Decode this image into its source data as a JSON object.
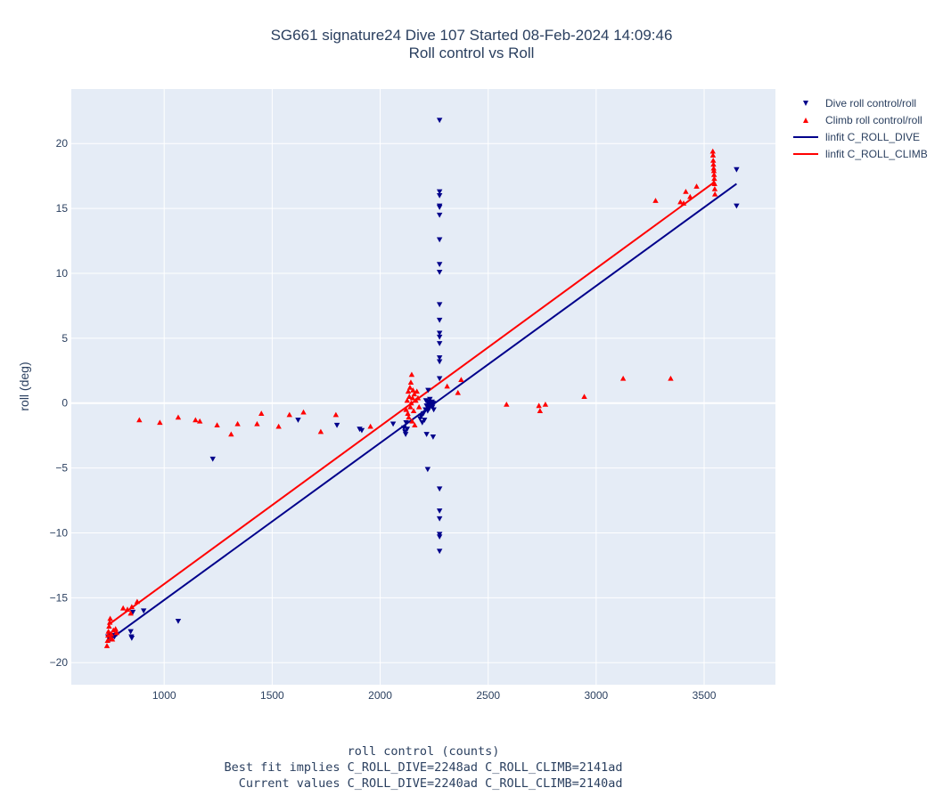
{
  "title": {
    "line1": "SG661 signature24 Dive 107 Started 08-Feb-2024 14:09:46",
    "line2": "Roll control vs Roll"
  },
  "xlabel": {
    "line1": "roll control (counts)",
    "line2": "Best fit implies C_ROLL_DIVE=2248ad C_ROLL_CLIMB=2141ad",
    "line3": "  Current values C_ROLL_DIVE=2240ad C_ROLL_CLIMB=2140ad"
  },
  "legend": [
    {
      "label": "Dive roll control/roll",
      "kind": "marker-down",
      "color": "#00008b"
    },
    {
      "label": "Climb roll control/roll",
      "kind": "marker-up",
      "color": "#ff0000"
    },
    {
      "label": "linfit C_ROLL_DIVE",
      "kind": "line",
      "color": "#00008b"
    },
    {
      "label": "linfit C_ROLL_CLIMB",
      "kind": "line",
      "color": "#ff0000"
    }
  ],
  "chart_data": {
    "type": "scatter",
    "xlabel": "roll control (counts)",
    "ylabel": "roll (deg)",
    "xlim": [
      570,
      3830
    ],
    "ylim": [
      -21.7,
      24.2
    ],
    "xticks": [
      1000,
      1500,
      2000,
      2500,
      3000,
      3500
    ],
    "yticks": [
      -20,
      -15,
      -10,
      -5,
      0,
      5,
      10,
      15,
      20
    ],
    "grid": true,
    "legend_position": "right",
    "colors": {
      "dive": "#00008b",
      "climb": "#ff0000",
      "plot_bg": "#e5ecf6",
      "grid": "#ffffff"
    },
    "series": [
      {
        "name": "Dive roll control/roll",
        "marker": "triangle-down",
        "color": "#00008b",
        "points": [
          [
            740,
            -18.0
          ],
          [
            745,
            -17.8
          ],
          [
            750,
            -18.2
          ],
          [
            760,
            -17.9
          ],
          [
            770,
            -18.0
          ],
          [
            780,
            -17.8
          ],
          [
            845,
            -17.6
          ],
          [
            848,
            -18.0
          ],
          [
            850,
            -18.1
          ],
          [
            855,
            -16.1
          ],
          [
            905,
            -16.0
          ],
          [
            1065,
            -16.8
          ],
          [
            1225,
            -4.3
          ],
          [
            1620,
            -1.3
          ],
          [
            1800,
            -1.7
          ],
          [
            1905,
            -2.0
          ],
          [
            1915,
            -2.1
          ],
          [
            2060,
            -1.6
          ],
          [
            2110,
            -1.9
          ],
          [
            2115,
            -2.2
          ],
          [
            2118,
            -2.4
          ],
          [
            2120,
            -1.5
          ],
          [
            2125,
            -2.0
          ],
          [
            2185,
            -1.2
          ],
          [
            2190,
            -1.0
          ],
          [
            2195,
            -1.5
          ],
          [
            2200,
            -0.8
          ],
          [
            2205,
            -1.3
          ],
          [
            2210,
            -0.5
          ],
          [
            2212,
            0.2
          ],
          [
            2215,
            -0.2
          ],
          [
            2218,
            0.1
          ],
          [
            2220,
            -0.6
          ],
          [
            2222,
            -0.3
          ],
          [
            2225,
            0.0
          ],
          [
            2228,
            -0.4
          ],
          [
            2230,
            0.3
          ],
          [
            2232,
            -0.1
          ],
          [
            2235,
            0.0
          ],
          [
            2238,
            -0.2
          ],
          [
            2240,
            0.1
          ],
          [
            2242,
            -0.3
          ],
          [
            2245,
            0.0
          ],
          [
            2248,
            -0.5
          ],
          [
            2215,
            -2.4
          ],
          [
            2245,
            -2.6
          ],
          [
            2222,
            1.0
          ],
          [
            2220,
            -5.1
          ],
          [
            2275,
            21.8
          ],
          [
            2275,
            16.3
          ],
          [
            2275,
            16.0
          ],
          [
            2275,
            15.2
          ],
          [
            2275,
            15.1
          ],
          [
            2275,
            14.5
          ],
          [
            2275,
            12.6
          ],
          [
            2275,
            10.7
          ],
          [
            2275,
            10.1
          ],
          [
            2275,
            7.6
          ],
          [
            2275,
            6.4
          ],
          [
            2275,
            5.4
          ],
          [
            2275,
            5.1
          ],
          [
            2275,
            4.6
          ],
          [
            2275,
            3.5
          ],
          [
            2275,
            3.2
          ],
          [
            2275,
            1.9
          ],
          [
            2275,
            -6.6
          ],
          [
            2275,
            -8.3
          ],
          [
            2275,
            -8.9
          ],
          [
            2275,
            -10.1
          ],
          [
            2275,
            -10.3
          ],
          [
            2275,
            -11.4
          ],
          [
            3650,
            18.0
          ],
          [
            3650,
            15.2
          ]
        ]
      },
      {
        "name": "Climb roll control/roll",
        "marker": "triangle-up",
        "color": "#ff0000",
        "points": [
          [
            735,
            -18.7
          ],
          [
            738,
            -18.3
          ],
          [
            740,
            -17.9
          ],
          [
            742,
            -17.6
          ],
          [
            745,
            -17.2
          ],
          [
            748,
            -16.9
          ],
          [
            750,
            -16.6
          ],
          [
            752,
            -18.1
          ],
          [
            755,
            -17.8
          ],
          [
            760,
            -18.2
          ],
          [
            765,
            -17.5
          ],
          [
            775,
            -17.4
          ],
          [
            780,
            -17.7
          ],
          [
            810,
            -15.8
          ],
          [
            830,
            -15.9
          ],
          [
            845,
            -16.2
          ],
          [
            850,
            -15.7
          ],
          [
            875,
            -15.3
          ],
          [
            885,
            -1.3
          ],
          [
            980,
            -1.5
          ],
          [
            1065,
            -1.1
          ],
          [
            1145,
            -1.3
          ],
          [
            1165,
            -1.4
          ],
          [
            1245,
            -1.7
          ],
          [
            1310,
            -2.4
          ],
          [
            1340,
            -1.6
          ],
          [
            1430,
            -1.6
          ],
          [
            1450,
            -0.8
          ],
          [
            1530,
            -1.8
          ],
          [
            1580,
            -0.9
          ],
          [
            1645,
            -0.7
          ],
          [
            1725,
            -2.2
          ],
          [
            1795,
            -0.9
          ],
          [
            1955,
            -1.8
          ],
          [
            2120,
            -0.5
          ],
          [
            2125,
            0.2
          ],
          [
            2128,
            -0.8
          ],
          [
            2130,
            0.9
          ],
          [
            2132,
            -1.1
          ],
          [
            2135,
            0.5
          ],
          [
            2138,
            1.2
          ],
          [
            2140,
            -0.3
          ],
          [
            2142,
            1.6
          ],
          [
            2144,
            0.0
          ],
          [
            2146,
            2.2
          ],
          [
            2148,
            -1.4
          ],
          [
            2150,
            0.4
          ],
          [
            2152,
            1.0
          ],
          [
            2155,
            -0.6
          ],
          [
            2158,
            0.7
          ],
          [
            2160,
            -1.7
          ],
          [
            2165,
            0.2
          ],
          [
            2170,
            0.9
          ],
          [
            2175,
            0.4
          ],
          [
            2180,
            -0.3
          ],
          [
            2310,
            1.3
          ],
          [
            2360,
            0.8
          ],
          [
            2375,
            1.8
          ],
          [
            2585,
            -0.1
          ],
          [
            2735,
            -0.2
          ],
          [
            2740,
            -0.6
          ],
          [
            2765,
            -0.1
          ],
          [
            2945,
            0.5
          ],
          [
            3125,
            1.9
          ],
          [
            3345,
            1.9
          ],
          [
            3275,
            15.6
          ],
          [
            3390,
            15.5
          ],
          [
            3405,
            15.4
          ],
          [
            3415,
            16.3
          ],
          [
            3435,
            15.9
          ],
          [
            3465,
            16.7
          ],
          [
            3540,
            19.4
          ],
          [
            3541,
            19.1
          ],
          [
            3542,
            18.7
          ],
          [
            3543,
            18.4
          ],
          [
            3544,
            18.1
          ],
          [
            3545,
            17.9
          ],
          [
            3546,
            17.6
          ],
          [
            3547,
            17.3
          ],
          [
            3548,
            16.9
          ],
          [
            3549,
            16.5
          ],
          [
            3550,
            16.1
          ],
          [
            3545,
            17.0
          ]
        ]
      },
      {
        "name": "linfit C_ROLL_DIVE",
        "line": true,
        "color": "#00008b",
        "points": [
          [
            750,
            -18.2
          ],
          [
            3650,
            16.9
          ]
        ]
      },
      {
        "name": "linfit C_ROLL_CLIMB",
        "line": true,
        "color": "#ff0000",
        "points": [
          [
            740,
            -17.1
          ],
          [
            3545,
            17.0
          ]
        ]
      }
    ]
  }
}
